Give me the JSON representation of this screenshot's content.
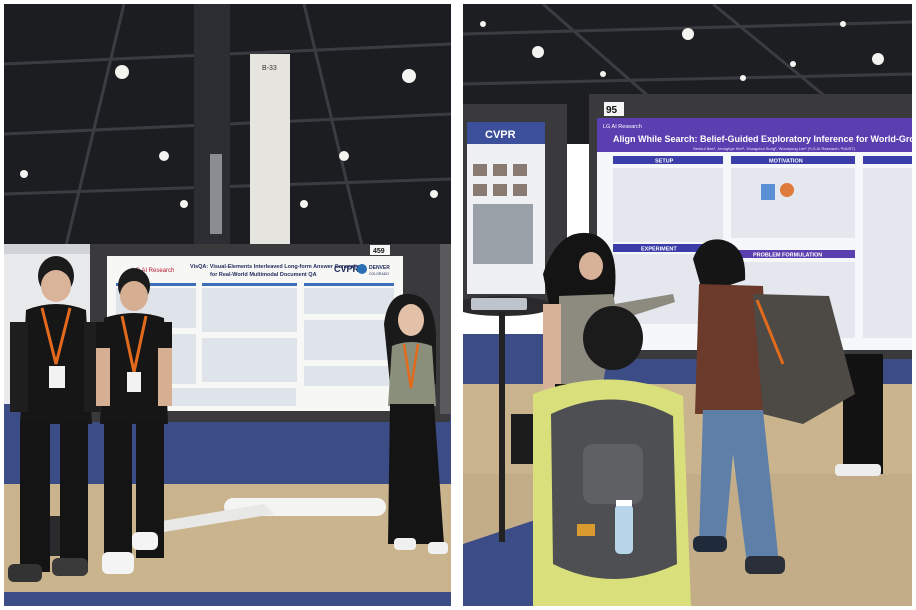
{
  "left_photo": {
    "pillar_label": "B-33",
    "booth_number": "459",
    "poster": {
      "title_line1": "VisQA: Visual-Elements Interleaved Long-form Answer Generation",
      "title_line2": "for Real-World Multimodal Document QA",
      "org_logo": "LG AI Research",
      "conference_logo": "CVPR",
      "conference_city": "DENVER",
      "conference_state": "COLORADO"
    }
  },
  "right_photo": {
    "booth_number": "95",
    "left_poster_logo": "CVPR",
    "poster": {
      "org_logo": "LG AI Research",
      "title": "Align While Search: Belief-Guided Exploratory Inference for World-Grounded",
      "authors": "Seohui Bae¹, Jeonghye Kim², Youngchul Sung², Woohyung Lim¹ (¹LG AI Research, ²KAIST)",
      "section_setup": "SETUP",
      "section_motivation": "MOTIVATION",
      "section_experiment": "EXPERIMENT",
      "section_problem": "PROBLEM FORMULATION"
    }
  },
  "colors": {
    "ceiling": "#1d1e22",
    "carpet_blue": "#3b4c86",
    "floor_tan": "#c9b48e",
    "poster_purple": "#5b3fb0",
    "lanyard_orange": "#e26a1c"
  }
}
